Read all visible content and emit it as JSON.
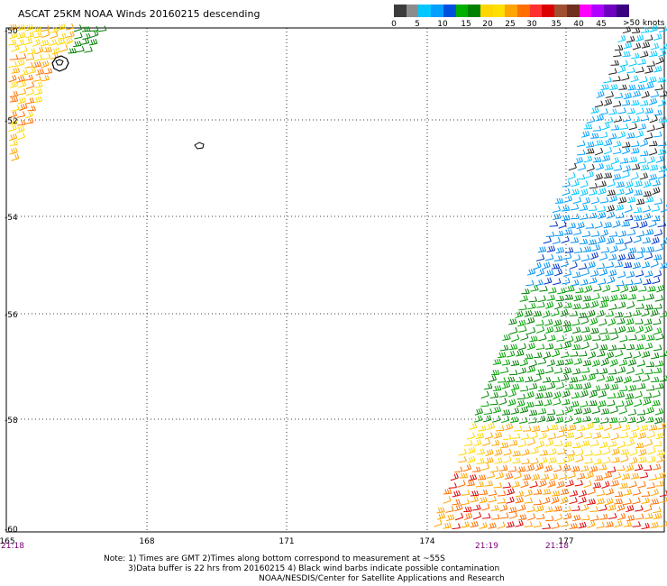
{
  "title": "ASCAT 25KM NOAA Winds 20160215 descending",
  "colorbar": {
    "colors": [
      "#3c3c3c",
      "#8c8c8c",
      "#00c8ff",
      "#00a0ff",
      "#0050e0",
      "#00b000",
      "#008000",
      "#ffd700",
      "#ffe000",
      "#ffa500",
      "#ff7000",
      "#ff3030",
      "#dd0000",
      "#a05030",
      "#703020",
      "#ff00ff",
      "#b000ff",
      "#7000c0",
      "#3a0080"
    ],
    "labels": [
      "0",
      "5",
      "10",
      "15",
      "20",
      "25",
      "30",
      "35",
      "40",
      "45"
    ],
    "unit_label": ">50 knots"
  },
  "map": {
    "lon_labels": [
      "165",
      "168",
      "171",
      "174",
      "177"
    ],
    "lat_labels": [
      "-50",
      "-52",
      "-54",
      "-56",
      "-58",
      "-60"
    ],
    "time_labels": [
      "21:18",
      "21:19",
      "21:18"
    ]
  },
  "notes": {
    "line1": "Note: 1) Times are GMT 2)Times along bottom correspond to measurement at ~55S",
    "line2": "3)Data buffer is 22 hrs from 20160215 4) Black wind barbs indicate possible contamination",
    "line3": "NOAA/NESDIS/Center for Satellite Applications and Research"
  }
}
